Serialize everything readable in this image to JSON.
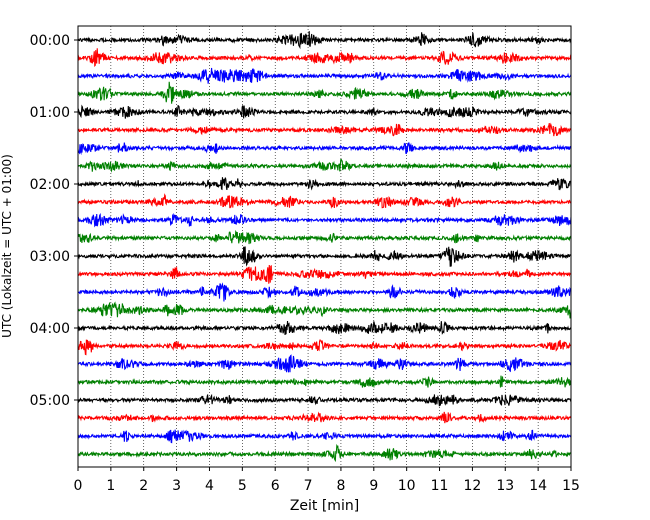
{
  "chart_data": {
    "type": "line",
    "title": "",
    "xlabel": "Zeit  [min]",
    "ylabel": "UTC (Lokalzeit = UTC + 01:00)",
    "xlim": [
      0,
      15
    ],
    "x_ticks": [
      "0",
      "1",
      "2",
      "3",
      "4",
      "5",
      "6",
      "7",
      "8",
      "9",
      "10",
      "11",
      "12",
      "13",
      "14",
      "15"
    ],
    "y_ticks": [
      "00:00",
      "01:00",
      "02:00",
      "03:00",
      "04:00",
      "05:00"
    ],
    "grid": "vertical dotted lines at each minute",
    "trace_colors": [
      "#000000",
      "#ff0000",
      "#0000ff",
      "#008000"
    ],
    "traces": [
      {
        "start": "00:00",
        "color": "#000000"
      },
      {
        "start": "00:15",
        "color": "#ff0000"
      },
      {
        "start": "00:30",
        "color": "#0000ff"
      },
      {
        "start": "00:45",
        "color": "#008000"
      },
      {
        "start": "01:00",
        "color": "#000000"
      },
      {
        "start": "01:15",
        "color": "#ff0000"
      },
      {
        "start": "01:30",
        "color": "#0000ff"
      },
      {
        "start": "01:45",
        "color": "#008000"
      },
      {
        "start": "02:00",
        "color": "#000000"
      },
      {
        "start": "02:15",
        "color": "#ff0000"
      },
      {
        "start": "02:30",
        "color": "#0000ff"
      },
      {
        "start": "02:45",
        "color": "#008000"
      },
      {
        "start": "03:00",
        "color": "#000000"
      },
      {
        "start": "03:15",
        "color": "#ff0000"
      },
      {
        "start": "03:30",
        "color": "#0000ff"
      },
      {
        "start": "03:45",
        "color": "#008000"
      },
      {
        "start": "04:00",
        "color": "#000000"
      },
      {
        "start": "04:15",
        "color": "#ff0000"
      },
      {
        "start": "04:30",
        "color": "#0000ff"
      },
      {
        "start": "04:45",
        "color": "#008000"
      },
      {
        "start": "05:00",
        "color": "#000000"
      },
      {
        "start": "05:15",
        "color": "#ff0000"
      },
      {
        "start": "05:30",
        "color": "#0000ff"
      },
      {
        "start": "05:45",
        "color": "#008000"
      }
    ]
  }
}
